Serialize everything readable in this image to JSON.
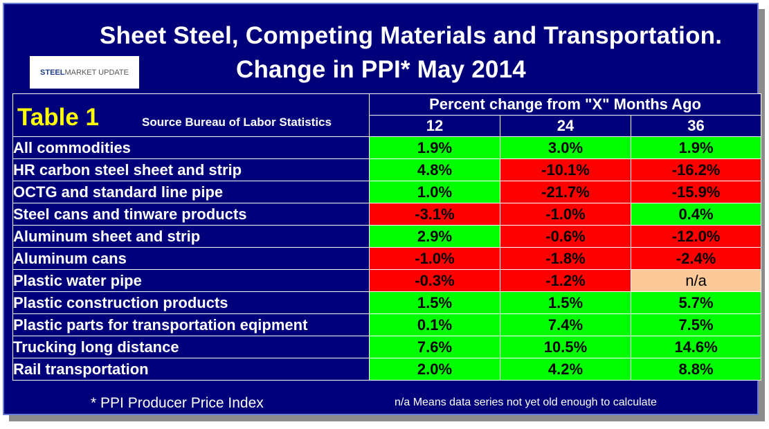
{
  "title": {
    "line1": "Sheet Steel, Competing Materials and Transportation.",
    "line2": "Change in PPI* May 2014"
  },
  "logo": {
    "text_bold": "STEEL",
    "text_rest": " MARKET UPDATE"
  },
  "table": {
    "table_label": "Table 1",
    "source": "Source Bureau of Labor Statistics",
    "group_header": "Percent change from \"X\" Months Ago",
    "columns": [
      "12",
      "24",
      "36"
    ],
    "rows": [
      {
        "label": "All commodities",
        "values": [
          "1.9%",
          "3.0%",
          "1.9%"
        ],
        "status": [
          "pos",
          "pos",
          "pos"
        ]
      },
      {
        "label": "HR carbon steel sheet and strip",
        "values": [
          "4.8%",
          "-10.1%",
          "-16.2%"
        ],
        "status": [
          "pos",
          "neg",
          "neg"
        ]
      },
      {
        "label": "OCTG and standard line pipe",
        "values": [
          "1.0%",
          "-21.7%",
          "-15.9%"
        ],
        "status": [
          "pos",
          "neg",
          "neg"
        ]
      },
      {
        "label": "Steel cans and tinware products",
        "values": [
          "-3.1%",
          "-1.0%",
          "0.4%"
        ],
        "status": [
          "neg",
          "neg",
          "pos"
        ]
      },
      {
        "label": "Aluminum sheet and strip",
        "values": [
          "2.9%",
          "-0.6%",
          "-12.0%"
        ],
        "status": [
          "pos",
          "neg",
          "neg"
        ]
      },
      {
        "label": "Aluminum cans",
        "values": [
          "-1.0%",
          "-1.8%",
          "-2.4%"
        ],
        "status": [
          "neg",
          "neg",
          "neg"
        ]
      },
      {
        "label": "Plastic water pipe",
        "values": [
          "-0.3%",
          "-1.2%",
          "n/a"
        ],
        "status": [
          "neg",
          "neg",
          "na"
        ]
      },
      {
        "label": "Plastic construction products",
        "values": [
          "1.5%",
          "1.5%",
          "5.7%"
        ],
        "status": [
          "pos",
          "pos",
          "pos"
        ]
      },
      {
        "label": "Plastic parts for transportation eqipment",
        "values": [
          "0.1%",
          "7.4%",
          "7.5%"
        ],
        "status": [
          "pos",
          "pos",
          "pos"
        ]
      },
      {
        "label": "Trucking long distance",
        "values": [
          "7.6%",
          "10.5%",
          "14.6%"
        ],
        "status": [
          "pos",
          "pos",
          "pos"
        ]
      },
      {
        "label": "Rail transportation",
        "values": [
          "2.0%",
          "4.2%",
          "8.8%"
        ],
        "status": [
          "pos",
          "pos",
          "pos"
        ]
      }
    ]
  },
  "footnotes": {
    "ppi": "* PPI  Producer Price Index",
    "na": "n/a Means data series not yet old enough to calculate"
  },
  "colors": {
    "background": "#00007a",
    "positive": "#00ff00",
    "negative": "#ff0000",
    "not_available": "#fdc999",
    "table_label": "#ffff00"
  }
}
